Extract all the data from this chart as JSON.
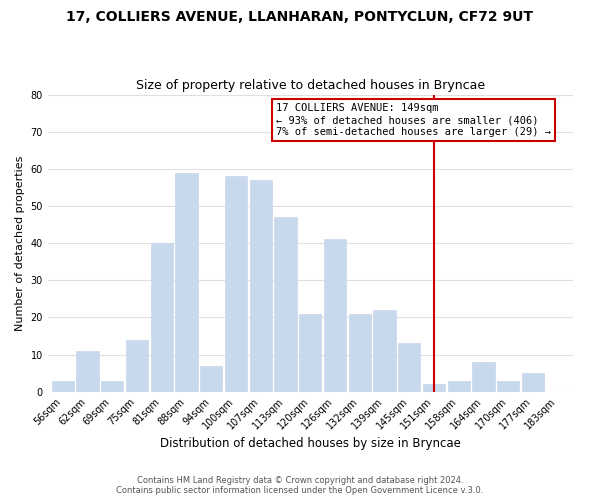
{
  "title": "17, COLLIERS AVENUE, LLANHARAN, PONTYCLUN, CF72 9UT",
  "subtitle": "Size of property relative to detached houses in Bryncae",
  "xlabel": "Distribution of detached houses by size in Bryncae",
  "ylabel": "Number of detached properties",
  "categories": [
    "56sqm",
    "62sqm",
    "69sqm",
    "75sqm",
    "81sqm",
    "88sqm",
    "94sqm",
    "100sqm",
    "107sqm",
    "113sqm",
    "120sqm",
    "126sqm",
    "132sqm",
    "139sqm",
    "145sqm",
    "151sqm",
    "158sqm",
    "164sqm",
    "170sqm",
    "177sqm",
    "183sqm"
  ],
  "values": [
    3,
    11,
    3,
    14,
    40,
    59,
    7,
    58,
    57,
    47,
    21,
    41,
    21,
    22,
    13,
    2,
    3,
    8,
    3,
    5,
    0
  ],
  "bar_color": "#c8d8ed",
  "bar_edge_color": "#c8d8ed",
  "background_color": "#ffffff",
  "grid_color": "#e0e0e0",
  "vline_x": 15,
  "vline_color": "#cc0000",
  "annotation_title": "17 COLLIERS AVENUE: 149sqm",
  "annotation_line1": "← 93% of detached houses are smaller (406)",
  "annotation_line2": "7% of semi-detached houses are larger (29) →",
  "annotation_box_color": "#ffffff",
  "annotation_box_edge": "#cc0000",
  "ylim": [
    0,
    80
  ],
  "yticks": [
    0,
    10,
    20,
    30,
    40,
    50,
    60,
    70,
    80
  ],
  "footer1": "Contains HM Land Registry data © Crown copyright and database right 2024.",
  "footer2": "Contains public sector information licensed under the Open Government Licence v.3.0.",
  "title_fontsize": 10,
  "subtitle_fontsize": 9,
  "tick_fontsize": 7,
  "ylabel_fontsize": 8,
  "xlabel_fontsize": 8.5,
  "annotation_fontsize": 7.5,
  "footer_fontsize": 6
}
